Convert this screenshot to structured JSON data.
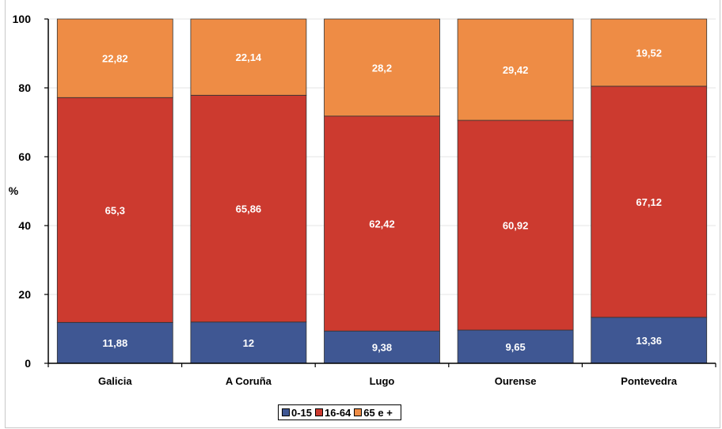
{
  "chart_data": {
    "type": "bar",
    "stacked": true,
    "title": "",
    "ylabel": "%",
    "xlabel": "",
    "ylim": [
      0,
      100
    ],
    "yticks": [
      0,
      20,
      40,
      60,
      80,
      100
    ],
    "categories": [
      "Galicia",
      "A Coruña",
      "Lugo",
      "Ourense",
      "Pontevedra"
    ],
    "series": [
      {
        "name": "0-15",
        "color": "#3f5793",
        "values": [
          11.88,
          12,
          9.38,
          9.65,
          13.36
        ],
        "labels": [
          "11,88",
          "12",
          "9,38",
          "9,65",
          "13,36"
        ]
      },
      {
        "name": "16-64",
        "color": "#cc3a2f",
        "values": [
          65.3,
          65.86,
          62.42,
          60.92,
          67.12
        ],
        "labels": [
          "65,3",
          "65,86",
          "62,42",
          "60,92",
          "67,12"
        ]
      },
      {
        "name": "65 e +",
        "color": "#ee8c45",
        "values": [
          22.82,
          22.14,
          28.2,
          29.42,
          19.52
        ],
        "labels": [
          "22,82",
          "22,14",
          "28,2",
          "29,42",
          "19,52"
        ]
      }
    ],
    "grid": true,
    "legend_position": "bottom"
  }
}
